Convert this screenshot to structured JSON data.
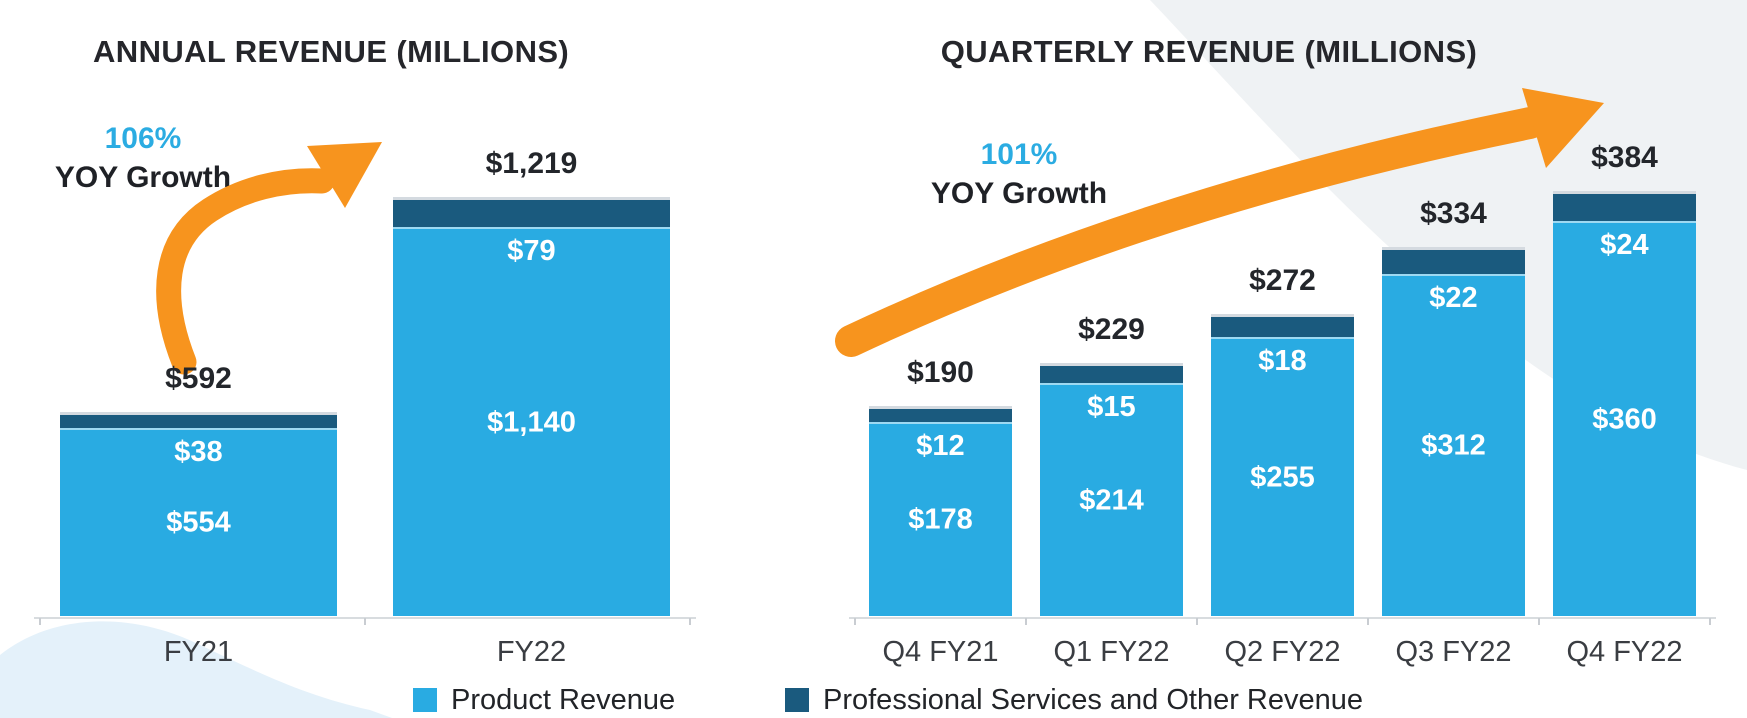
{
  "colors": {
    "product": "#29ABE2",
    "services": "#1A5A7E",
    "arrow": "#F7941E",
    "growth_pct": "#2BACE2",
    "title_text": "#25262B",
    "axis_line": "#D8DCDF",
    "decor_gray": "#EFF2F4",
    "decor_blue": "#E4F1FA"
  },
  "legend": {
    "items": [
      {
        "label": "Product Revenue",
        "color_key": "product"
      },
      {
        "label": "Professional Services and Other Revenue",
        "color_key": "services"
      }
    ]
  },
  "chart_data": [
    {
      "type": "bar",
      "stacked": true,
      "title": "ANNUAL REVENUE (MILLIONS)",
      "growth_pct": "106%",
      "growth_label": "YOY Growth",
      "categories": [
        "FY21",
        "FY22"
      ],
      "series": [
        {
          "name": "Product Revenue",
          "values": [
            554,
            1140
          ],
          "labels": [
            "$554",
            "$1,140"
          ]
        },
        {
          "name": "Professional Services and Other Revenue",
          "values": [
            38,
            79
          ],
          "labels": [
            "$38",
            "$79"
          ]
        }
      ],
      "totals": [
        592,
        1219
      ],
      "total_labels": [
        "$592",
        "$1,219"
      ],
      "xlabel": "",
      "ylabel": "",
      "ylim": [
        0,
        1280
      ],
      "grid": false,
      "legend_position": "bottom"
    },
    {
      "type": "bar",
      "stacked": true,
      "title": "QUARTERLY REVENUE (MILLIONS)",
      "growth_pct": "101%",
      "growth_label": "YOY Growth",
      "categories": [
        "Q4 FY21",
        "Q1 FY22",
        "Q2 FY22",
        "Q3 FY22",
        "Q4 FY22"
      ],
      "series": [
        {
          "name": "Product Revenue",
          "values": [
            178,
            214,
            255,
            312,
            360
          ],
          "labels": [
            "$178",
            "$214",
            "$255",
            "$312",
            "$360"
          ]
        },
        {
          "name": "Professional Services and Other Revenue",
          "values": [
            12,
            15,
            18,
            22,
            24
          ],
          "labels": [
            "$12",
            "$15",
            "$18",
            "$22",
            "$24"
          ]
        }
      ],
      "totals": [
        190,
        229,
        272,
        334,
        384
      ],
      "total_labels": [
        "$190",
        "$229",
        "$272",
        "$334",
        "$384"
      ],
      "xlabel": "",
      "ylabel": "",
      "ylim": [
        0,
        400
      ],
      "grid": false,
      "legend_position": "bottom"
    }
  ]
}
